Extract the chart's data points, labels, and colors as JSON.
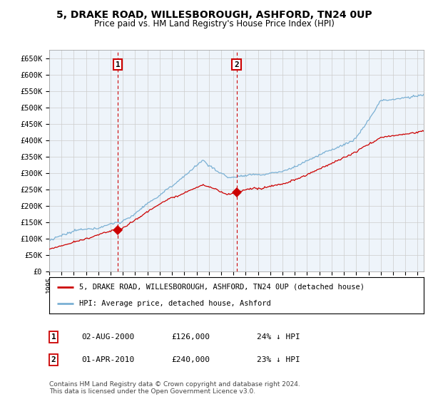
{
  "title_line1": "5, DRAKE ROAD, WILLESBOROUGH, ASHFORD, TN24 0UP",
  "title_line2": "Price paid vs. HM Land Registry's House Price Index (HPI)",
  "ylabel_ticks": [
    "£0",
    "£50K",
    "£100K",
    "£150K",
    "£200K",
    "£250K",
    "£300K",
    "£350K",
    "£400K",
    "£450K",
    "£500K",
    "£550K",
    "£600K",
    "£650K"
  ],
  "ytick_values": [
    0,
    50000,
    100000,
    150000,
    200000,
    250000,
    300000,
    350000,
    400000,
    450000,
    500000,
    550000,
    600000,
    650000
  ],
  "xlim_start": 1995.0,
  "xlim_end": 2025.5,
  "ylim_min": 0,
  "ylim_max": 675000,
  "sale1_x": 2000.583,
  "sale1_y": 126000,
  "sale1_label": "1",
  "sale2_x": 2010.25,
  "sale2_y": 240000,
  "sale2_label": "2",
  "sale_color": "#cc0000",
  "hpi_color": "#7ab0d4",
  "vline_color": "#cc0000",
  "grid_color": "#cccccc",
  "bg_color": "#ffffff",
  "plot_bg_color": "#eef4fa",
  "legend_label_sale": "5, DRAKE ROAD, WILLESBOROUGH, ASHFORD, TN24 0UP (detached house)",
  "legend_label_hpi": "HPI: Average price, detached house, Ashford",
  "table_entries": [
    {
      "num": "1",
      "date": "02-AUG-2000",
      "price": "£126,000",
      "pct": "24% ↓ HPI"
    },
    {
      "num": "2",
      "date": "01-APR-2010",
      "price": "£240,000",
      "pct": "23% ↓ HPI"
    }
  ],
  "footnote": "Contains HM Land Registry data © Crown copyright and database right 2024.\nThis data is licensed under the Open Government Licence v3.0.",
  "xticks": [
    1995,
    1996,
    1997,
    1998,
    1999,
    2000,
    2001,
    2002,
    2003,
    2004,
    2005,
    2006,
    2007,
    2008,
    2009,
    2010,
    2011,
    2012,
    2013,
    2014,
    2015,
    2016,
    2017,
    2018,
    2019,
    2020,
    2021,
    2022,
    2023,
    2024,
    2025
  ]
}
